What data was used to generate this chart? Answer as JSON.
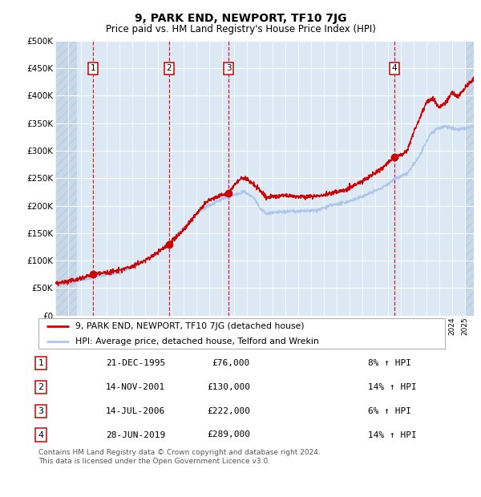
{
  "title": "9, PARK END, NEWPORT, TF10 7JG",
  "subtitle": "Price paid vs. HM Land Registry's House Price Index (HPI)",
  "footer": "Contains HM Land Registry data © Crown copyright and database right 2024.\nThis data is licensed under the Open Government Licence v3.0.",
  "legend_line1": "9, PARK END, NEWPORT, TF10 7JG (detached house)",
  "legend_line2": "HPI: Average price, detached house, Telford and Wrekin",
  "sales": [
    {
      "num": 1,
      "date": "21-DEC-1995",
      "price": 76000,
      "pct": "8%",
      "year_x": 1995.97
    },
    {
      "num": 2,
      "date": "14-NOV-2001",
      "price": 130000,
      "pct": "14%",
      "year_x": 2001.87
    },
    {
      "num": 3,
      "date": "14-JUL-2006",
      "price": 222000,
      "pct": "6%",
      "year_x": 2006.54
    },
    {
      "num": 4,
      "date": "28-JUN-2019",
      "price": 289000,
      "pct": "14%",
      "year_x": 2019.49
    }
  ],
  "hpi_color": "#aec6e8",
  "price_color": "#cc0000",
  "sale_dot_color": "#cc0000",
  "dashed_line_color": "#cc0000",
  "bg_color": "#dce9f5",
  "grid_color": "#ffffff",
  "ylim": [
    0,
    500000
  ],
  "yticks": [
    0,
    50000,
    100000,
    150000,
    200000,
    250000,
    300000,
    350000,
    400000,
    450000,
    500000
  ],
  "xlim_start": 1993.0,
  "xlim_end": 2025.7
}
